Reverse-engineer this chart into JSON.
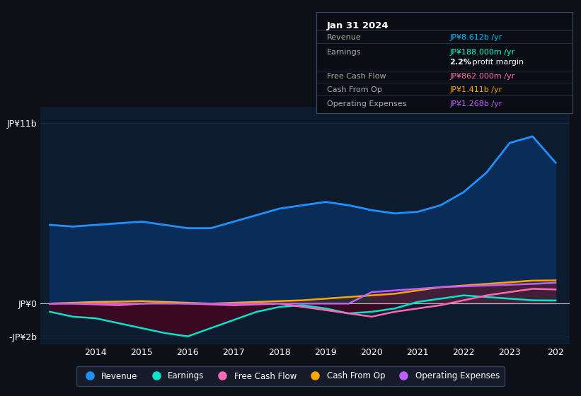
{
  "bg_color": "#0d1117",
  "chart_bg": "#0d1b2e",
  "years": [
    2013.0,
    2013.5,
    2014.0,
    2014.5,
    2015.0,
    2015.5,
    2016.0,
    2016.5,
    2017.0,
    2017.5,
    2018.0,
    2018.5,
    2019.0,
    2019.5,
    2020.0,
    2020.5,
    2021.0,
    2021.5,
    2022.0,
    2022.5,
    2023.0,
    2023.5,
    2024.0
  ],
  "revenue": [
    4.8,
    4.7,
    4.8,
    4.9,
    5.0,
    4.8,
    4.6,
    4.6,
    5.0,
    5.4,
    5.8,
    6.0,
    6.2,
    6.0,
    5.7,
    5.5,
    5.6,
    6.0,
    6.8,
    8.0,
    9.8,
    10.2,
    8.6
  ],
  "earnings": [
    -0.5,
    -0.8,
    -0.9,
    -1.2,
    -1.5,
    -1.8,
    -2.0,
    -1.5,
    -1.0,
    -0.5,
    -0.2,
    -0.1,
    -0.3,
    -0.6,
    -0.5,
    -0.3,
    0.1,
    0.3,
    0.5,
    0.4,
    0.3,
    0.2,
    0.188
  ],
  "free_cash_flow": [
    0.0,
    0.0,
    -0.05,
    -0.1,
    0.0,
    0.05,
    0.0,
    -0.05,
    -0.1,
    -0.05,
    0.0,
    -0.2,
    -0.4,
    -0.6,
    -0.8,
    -0.5,
    -0.3,
    -0.1,
    0.2,
    0.5,
    0.7,
    0.9,
    0.862
  ],
  "cash_from_op": [
    0.0,
    0.05,
    0.1,
    0.12,
    0.15,
    0.1,
    0.05,
    0.0,
    0.05,
    0.1,
    0.15,
    0.2,
    0.3,
    0.4,
    0.5,
    0.6,
    0.8,
    1.0,
    1.1,
    1.2,
    1.3,
    1.4,
    1.411
  ],
  "op_expenses": [
    0.0,
    0.0,
    0.0,
    0.0,
    0.0,
    0.0,
    0.0,
    0.0,
    0.0,
    0.0,
    0.0,
    0.0,
    0.0,
    0.0,
    0.7,
    0.8,
    0.9,
    1.0,
    1.05,
    1.1,
    1.15,
    1.2,
    1.268
  ],
  "revenue_color": "#1e90ff",
  "earnings_color": "#00e5cc",
  "fcf_color": "#ff69b4",
  "cashop_color": "#ffa500",
  "opex_color": "#bf5fff",
  "ylim": [
    -2.5,
    12.0
  ],
  "xlim": [
    2012.8,
    2024.3
  ],
  "legend_labels": [
    "Revenue",
    "Earnings",
    "Free Cash Flow",
    "Cash From Op",
    "Operating Expenses"
  ],
  "legend_colors": [
    "#1e90ff",
    "#00e5cc",
    "#ff69b4",
    "#ffa500",
    "#bf5fff"
  ],
  "tooltip_title": "Jan 31 2024",
  "tooltip_rows": [
    {
      "label": "Revenue",
      "value": "JP¥8.612b /yr",
      "value_color": "#00bfff"
    },
    {
      "label": "Earnings",
      "value": "JP¥188.000m /yr",
      "value_color": "#00ffcc"
    },
    {
      "label": "",
      "value": "2.2% profit margin",
      "value_color": "#ffffff"
    },
    {
      "label": "Free Cash Flow",
      "value": "JP¥862.000m /yr",
      "value_color": "#ff69b4"
    },
    {
      "label": "Cash From Op",
      "value": "JP¥1.411b /yr",
      "value_color": "#ffa500"
    },
    {
      "label": "Operating Expenses",
      "value": "JP¥1.268b /yr",
      "value_color": "#bf5fff"
    }
  ]
}
